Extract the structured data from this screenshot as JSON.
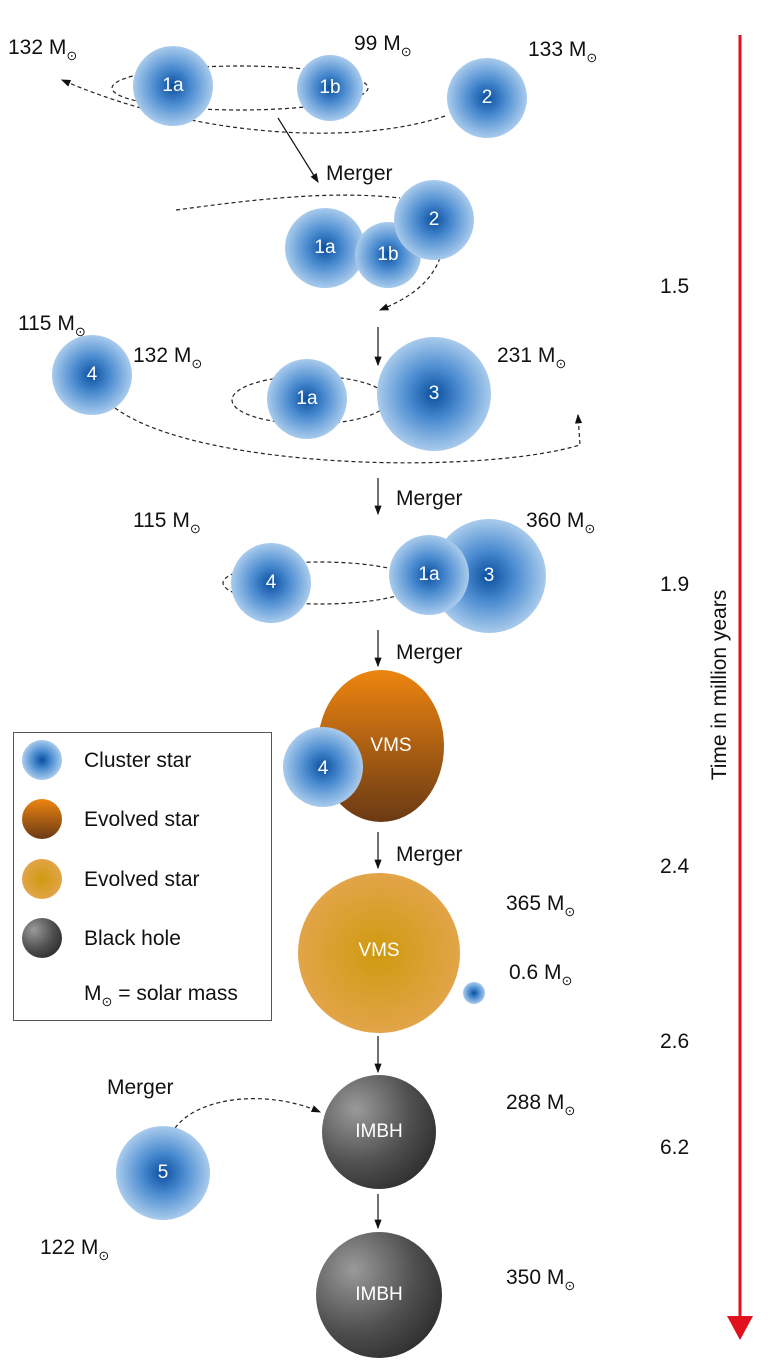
{
  "colors": {
    "cluster_star": "#2a6fc0",
    "evolved_orange": "#e07f14",
    "evolved_yellow": "#d9a030",
    "black_hole": "#444444",
    "time_arrow": "#e0101c"
  },
  "stars": {
    "s1a": "1a",
    "s1b": "1b",
    "s2": "2",
    "s3": "3",
    "s4": "4",
    "s5": "5",
    "vms": "VMS",
    "imbh": "IMBH"
  },
  "masses": {
    "m132a": "132 M",
    "m99": "99 M",
    "m133": "133 M",
    "m115a": "115 M",
    "m132b": "132 M",
    "m231": "231 M",
    "m115b": "115 M",
    "m360": "360 M",
    "m365": "365 M",
    "m06": "0.6 M",
    "m288": "288 M",
    "m122": "122 M",
    "m350": "350 M",
    "sun": "⊙"
  },
  "merger_label": "Merger",
  "legend": {
    "items": [
      "Cluster star",
      "Evolved star",
      "Evolved star",
      "Black hole"
    ],
    "note_m": "M",
    "note_rest": " = solar mass"
  },
  "time_axis": {
    "title": "Time in million years",
    "ticks": [
      "1.5",
      "1.9",
      "2.4",
      "2.6",
      "6.2"
    ]
  }
}
